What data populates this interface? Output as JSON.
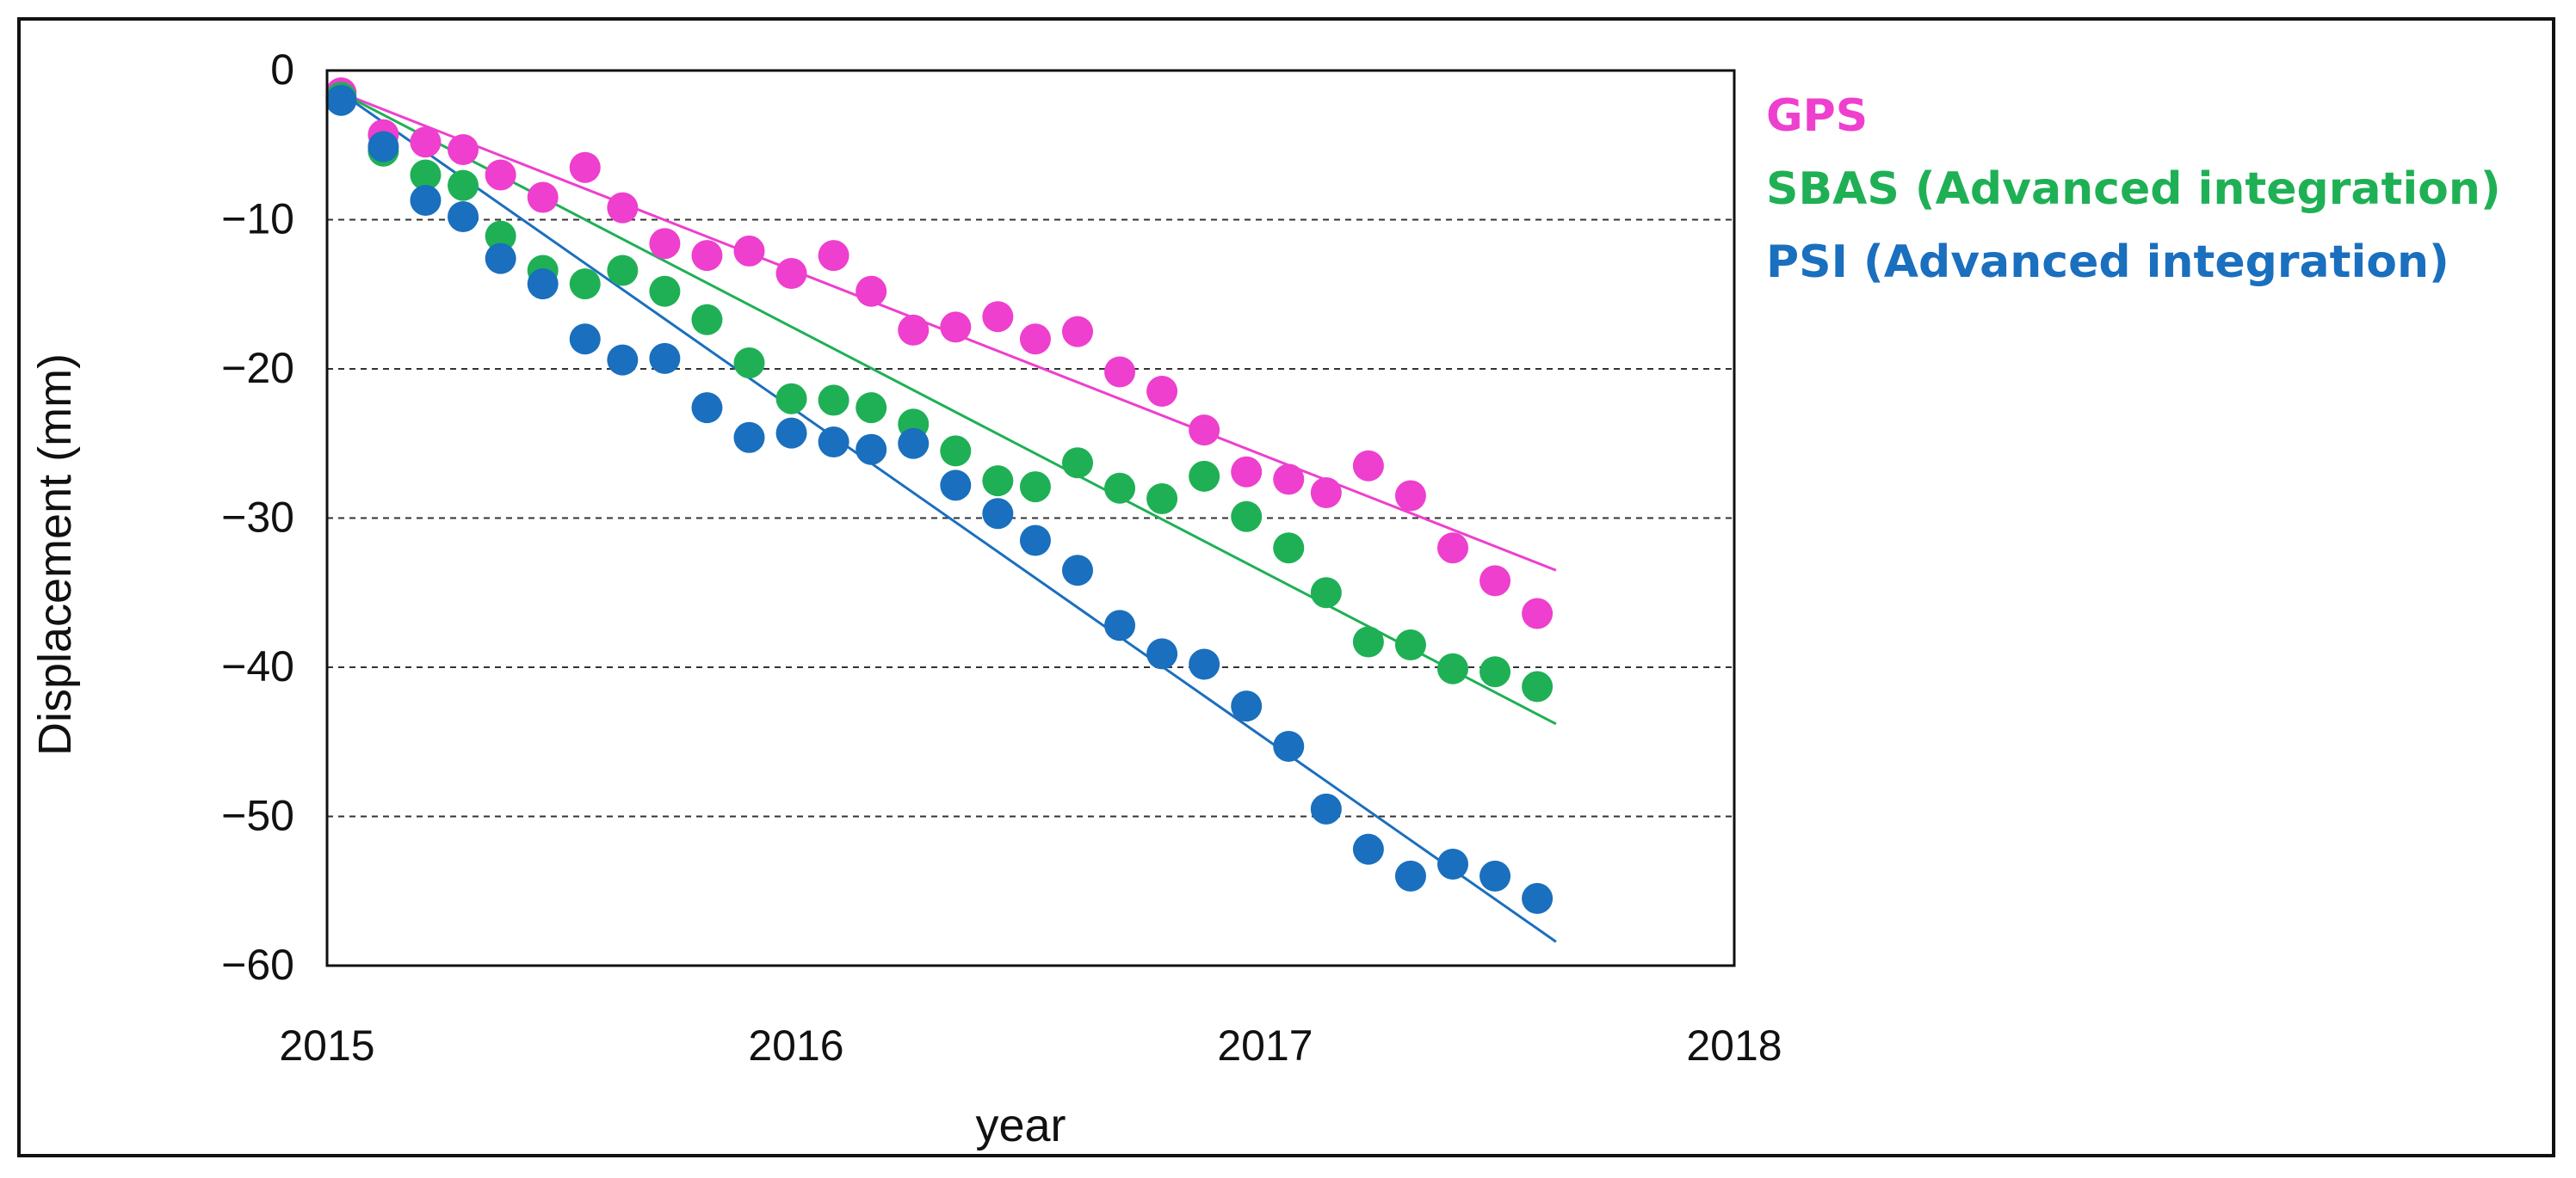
{
  "chart_data": {
    "type": "scatter",
    "title": "",
    "xlabel": "year",
    "ylabel": "Displacement (mm)",
    "xlim": [
      2015,
      2018
    ],
    "ylim": [
      -60,
      0
    ],
    "x_ticks": [
      2015,
      2016,
      2017,
      2018
    ],
    "x_tick_labels": [
      "2015",
      "2016",
      "2017",
      "2018"
    ],
    "y_ticks": [
      0,
      -10,
      -20,
      -30,
      -40,
      -50,
      -60
    ],
    "y_tick_labels": [
      "0",
      "−10",
      "−20",
      "−30",
      "−40",
      "−50",
      "−60"
    ],
    "grid": "dashed horizontal lines at -10, -20, -30, -40, -50, -60",
    "legend_position": "right",
    "series": [
      {
        "name": "GPS",
        "color": "#ee3fce",
        "trend": {
          "x0": 2015.03,
          "y0": -1.5,
          "x1": 2017.62,
          "y1": -33.5
        },
        "points": [
          [
            2015.03,
            -1.5
          ],
          [
            2015.12,
            -4.3
          ],
          [
            2015.21,
            -4.8
          ],
          [
            2015.29,
            -5.3
          ],
          [
            2015.37,
            -7.0
          ],
          [
            2015.46,
            -8.5
          ],
          [
            2015.55,
            -6.5
          ],
          [
            2015.63,
            -9.2
          ],
          [
            2015.72,
            -11.6
          ],
          [
            2015.81,
            -12.4
          ],
          [
            2015.9,
            -12.1
          ],
          [
            2015.99,
            -13.6
          ],
          [
            2016.08,
            -12.4
          ],
          [
            2016.16,
            -14.8
          ],
          [
            2016.25,
            -17.4
          ],
          [
            2016.34,
            -17.2
          ],
          [
            2016.43,
            -16.5
          ],
          [
            2016.51,
            -18.0
          ],
          [
            2016.6,
            -17.5
          ],
          [
            2016.69,
            -20.2
          ],
          [
            2016.78,
            -21.5
          ],
          [
            2016.87,
            -24.1
          ],
          [
            2016.96,
            -26.9
          ],
          [
            2017.05,
            -27.4
          ],
          [
            2017.13,
            -28.3
          ],
          [
            2017.22,
            -26.5
          ],
          [
            2017.31,
            -28.5
          ],
          [
            2017.4,
            -32.0
          ],
          [
            2017.49,
            -34.2
          ],
          [
            2017.58,
            -36.4
          ]
        ]
      },
      {
        "name": "SBAS (Advanced integration)",
        "color": "#1fb055",
        "trend": {
          "x0": 2015.03,
          "y0": -1.5,
          "x1": 2017.62,
          "y1": -43.8
        },
        "points": [
          [
            2015.03,
            -1.8
          ],
          [
            2015.12,
            -5.4
          ],
          [
            2015.21,
            -7.0
          ],
          [
            2015.29,
            -7.7
          ],
          [
            2015.37,
            -11.1
          ],
          [
            2015.46,
            -13.4
          ],
          [
            2015.55,
            -14.3
          ],
          [
            2015.63,
            -13.4
          ],
          [
            2015.72,
            -14.8
          ],
          [
            2015.81,
            -16.7
          ],
          [
            2015.9,
            -19.6
          ],
          [
            2015.99,
            -22.0
          ],
          [
            2016.08,
            -22.1
          ],
          [
            2016.16,
            -22.6
          ],
          [
            2016.25,
            -23.7
          ],
          [
            2016.34,
            -25.5
          ],
          [
            2016.43,
            -27.5
          ],
          [
            2016.51,
            -27.9
          ],
          [
            2016.6,
            -26.3
          ],
          [
            2016.69,
            -28.0
          ],
          [
            2016.78,
            -28.7
          ],
          [
            2016.87,
            -27.2
          ],
          [
            2016.96,
            -29.9
          ],
          [
            2017.05,
            -32.0
          ],
          [
            2017.13,
            -35.0
          ],
          [
            2017.22,
            -38.3
          ],
          [
            2017.31,
            -38.5
          ],
          [
            2017.4,
            -40.1
          ],
          [
            2017.49,
            -40.3
          ],
          [
            2017.58,
            -41.3
          ]
        ]
      },
      {
        "name": "PSI (Advanced integration)",
        "color": "#1a6fbe",
        "trend": {
          "x0": 2015.03,
          "y0": -1.5,
          "x1": 2017.62,
          "y1": -58.4
        },
        "points": [
          [
            2015.03,
            -2.0
          ],
          [
            2015.12,
            -5.1
          ],
          [
            2015.21,
            -8.7
          ],
          [
            2015.29,
            -9.8
          ],
          [
            2015.37,
            -12.6
          ],
          [
            2015.46,
            -14.3
          ],
          [
            2015.55,
            -18.0
          ],
          [
            2015.63,
            -19.4
          ],
          [
            2015.72,
            -19.3
          ],
          [
            2015.81,
            -22.6
          ],
          [
            2015.9,
            -24.6
          ],
          [
            2015.99,
            -24.3
          ],
          [
            2016.08,
            -24.9
          ],
          [
            2016.16,
            -25.4
          ],
          [
            2016.25,
            -25.0
          ],
          [
            2016.34,
            -27.8
          ],
          [
            2016.43,
            -29.7
          ],
          [
            2016.51,
            -31.5
          ],
          [
            2016.6,
            -33.5
          ],
          [
            2016.69,
            -37.2
          ],
          [
            2016.78,
            -39.1
          ],
          [
            2016.87,
            -39.8
          ],
          [
            2016.96,
            -42.6
          ],
          [
            2017.05,
            -45.3
          ],
          [
            2017.13,
            -49.5
          ],
          [
            2017.22,
            -52.2
          ],
          [
            2017.31,
            -54.0
          ],
          [
            2017.4,
            -53.2
          ],
          [
            2017.49,
            -54.0
          ],
          [
            2017.58,
            -55.5
          ]
        ]
      }
    ]
  }
}
